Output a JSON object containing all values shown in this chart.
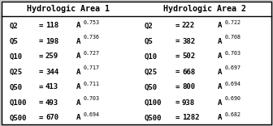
{
  "title1": "Hydrologic Area 1",
  "title2": "Hydrologic Area 2",
  "area1": [
    {
      "label": "Q2",
      "coeff": "118",
      "exp": "0.753"
    },
    {
      "label": "Q5",
      "coeff": "198",
      "exp": "0.736"
    },
    {
      "label": "Q10",
      "coeff": "259",
      "exp": "0.727"
    },
    {
      "label": "Q25",
      "coeff": "344",
      "exp": "0.717"
    },
    {
      "label": "Q50",
      "coeff": "413",
      "exp": "0.711"
    },
    {
      "label": "Q100",
      "coeff": "493",
      "exp": "0.703"
    },
    {
      "label": "Q500",
      "coeff": "670",
      "exp": "0.694"
    }
  ],
  "area2": [
    {
      "label": "Q2",
      "coeff": "222",
      "exp": "0.722"
    },
    {
      "label": "Q5",
      "coeff": "382",
      "exp": "0.708"
    },
    {
      "label": "Q10",
      "coeff": "502",
      "exp": "0.703"
    },
    {
      "label": "Q25",
      "coeff": "668",
      "exp": "0.697"
    },
    {
      "label": "Q50",
      "coeff": "800",
      "exp": "0.694"
    },
    {
      "label": "Q100",
      "coeff": "938",
      "exp": "0.690"
    },
    {
      "label": "Q500",
      "coeff": "1282",
      "exp": "0.682"
    }
  ],
  "bg_color": "#c8c8c8",
  "text_color": "#000000",
  "font_size": 6.5,
  "header_font_size": 7.2,
  "exp_font_size": 4.8,
  "figsize": [
    3.36,
    1.56
  ],
  "dpi": 100
}
